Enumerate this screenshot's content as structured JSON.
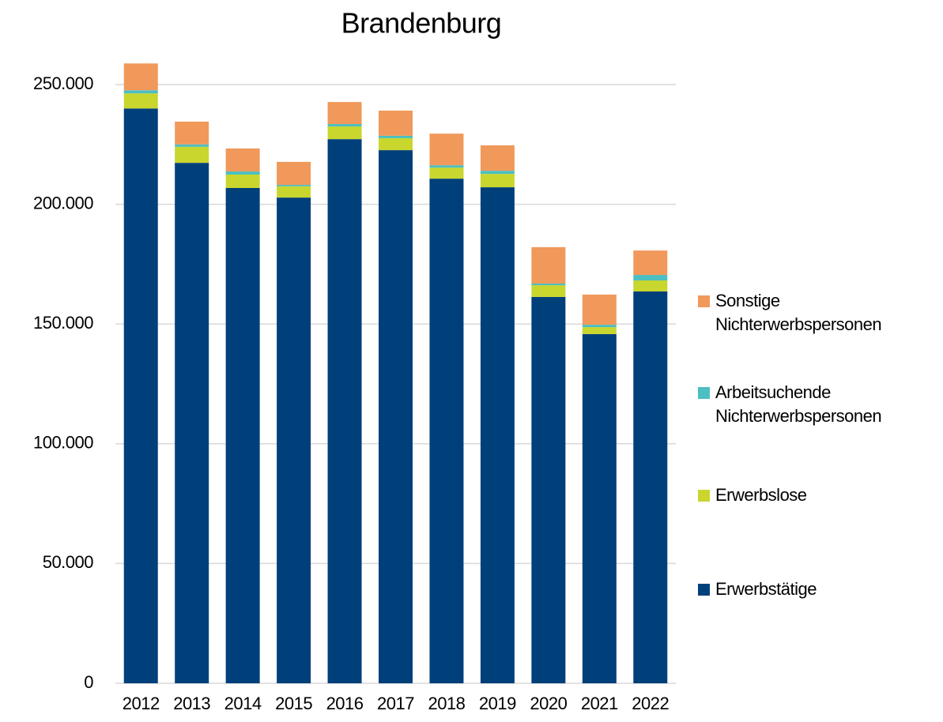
{
  "chart_data": {
    "type": "stacked_bar",
    "title": "Brandenburg",
    "categories": [
      "2012",
      "2013",
      "2014",
      "2015",
      "2016",
      "2017",
      "2018",
      "2019",
      "2020",
      "2021",
      "2022"
    ],
    "series": [
      {
        "name": "Erwerbstätige",
        "color": "#00407a",
        "values": [
          240000,
          217300,
          206800,
          202800,
          227200,
          222600,
          210700,
          207100,
          161300,
          145800,
          163600
        ]
      },
      {
        "name": "Erwerbslose",
        "color": "#c8d62e",
        "values": [
          6300,
          6700,
          5600,
          4700,
          5300,
          5000,
          4600,
          5600,
          4900,
          2900,
          4600
        ]
      },
      {
        "name": "Arbeitsuchende Nichterwerbspersonen",
        "color": "#4bbfc1",
        "values": [
          1300,
          1000,
          1300,
          600,
          1000,
          1000,
          1000,
          1300,
          700,
          1000,
          2300
        ]
      },
      {
        "name": "Sonstige Nichterwerbspersonen",
        "color": "#f0995a",
        "values": [
          11200,
          9500,
          9600,
          9600,
          9200,
          10500,
          13200,
          10600,
          15200,
          12600,
          10200
        ]
      }
    ],
    "ylim": [
      0,
      250000
    ],
    "yticks": [
      0,
      {
        "value": 50000,
        "label": "50.000"
      },
      {
        "value": 100000,
        "label": "100.000"
      },
      {
        "value": 150000,
        "label": "150.000"
      },
      {
        "value": 200000,
        "label": "200.000"
      },
      {
        "value": 250000,
        "label": "250.000"
      }
    ],
    "grid": true,
    "legend": "right"
  }
}
